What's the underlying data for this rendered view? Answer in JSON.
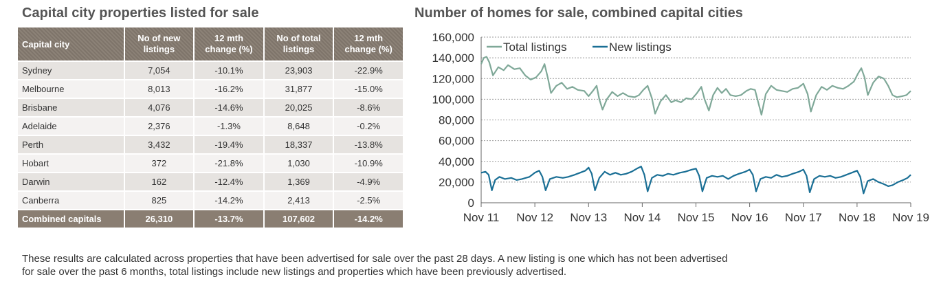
{
  "left": {
    "title": "Capital city properties listed for sale",
    "table": {
      "headers": {
        "city": "Capital city",
        "new_1": "No of new",
        "new_2": "listings",
        "new_chg_1": "12 mth",
        "new_chg_2": "change (%)",
        "total_1": "No of total",
        "total_2": "listings",
        "total_chg_1": "12 mth",
        "total_chg_2": "change (%)"
      },
      "rows": [
        {
          "city": "Sydney",
          "new": "7,054",
          "new_chg": "-10.1%",
          "total": "23,903",
          "total_chg": "-22.9%"
        },
        {
          "city": "Melbourne",
          "new": "8,013",
          "new_chg": "-16.2%",
          "total": "31,877",
          "total_chg": "-15.0%"
        },
        {
          "city": "Brisbane",
          "new": "4,076",
          "new_chg": "-14.6%",
          "total": "20,025",
          "total_chg": "-8.6%"
        },
        {
          "city": "Adelaide",
          "new": "2,376",
          "new_chg": "-1.3%",
          "total": "8,648",
          "total_chg": "-0.2%"
        },
        {
          "city": "Perth",
          "new": "3,432",
          "new_chg": "-19.4%",
          "total": "18,337",
          "total_chg": "-13.8%"
        },
        {
          "city": "Hobart",
          "new": "372",
          "new_chg": "-21.8%",
          "total": "1,030",
          "total_chg": "-10.9%"
        },
        {
          "city": "Darwin",
          "new": "162",
          "new_chg": "-12.4%",
          "total": "1,369",
          "total_chg": "-4.9%"
        },
        {
          "city": "Canberra",
          "new": "825",
          "new_chg": "-14.2%",
          "total": "2,413",
          "total_chg": "-2.5%"
        }
      ],
      "total": {
        "city": "Combined capitals",
        "new": "26,310",
        "new_chg": "-13.7%",
        "total": "107,602",
        "total_chg": "-14.2%"
      }
    }
  },
  "chart_data": {
    "type": "line",
    "title": "Number of homes for sale, combined capital cities",
    "xlabel": "",
    "ylabel": "",
    "ylim": [
      0,
      160000
    ],
    "ytick_labels": [
      "0",
      "20,000",
      "40,000",
      "60,000",
      "80,000",
      "100,000",
      "120,000",
      "140,000",
      "160,000"
    ],
    "xtick_labels": [
      "Nov 11",
      "Nov 12",
      "Nov 13",
      "Nov 14",
      "Nov 15",
      "Nov 16",
      "Nov 17",
      "Nov 18",
      "Nov 19"
    ],
    "xlim": [
      0,
      8
    ],
    "legend_position": "top-left",
    "grid": "horizontal-dotted",
    "series": [
      {
        "name": "Total listings",
        "color": "#7fa898",
        "points": [
          [
            0,
            134000
          ],
          [
            0.05,
            140000
          ],
          [
            0.1,
            141000
          ],
          [
            0.15,
            136000
          ],
          [
            0.22,
            123000
          ],
          [
            0.32,
            131000
          ],
          [
            0.42,
            128000
          ],
          [
            0.5,
            133000
          ],
          [
            0.62,
            129000
          ],
          [
            0.72,
            130000
          ],
          [
            0.82,
            123000
          ],
          [
            0.92,
            119000
          ],
          [
            1.02,
            121000
          ],
          [
            1.12,
            127000
          ],
          [
            1.18,
            134000
          ],
          [
            1.24,
            121000
          ],
          [
            1.3,
            106000
          ],
          [
            1.4,
            113000
          ],
          [
            1.5,
            116000
          ],
          [
            1.6,
            110000
          ],
          [
            1.7,
            112000
          ],
          [
            1.8,
            109000
          ],
          [
            1.92,
            108000
          ],
          [
            2.0,
            103000
          ],
          [
            2.08,
            108000
          ],
          [
            2.15,
            113000
          ],
          [
            2.2,
            100000
          ],
          [
            2.26,
            90000
          ],
          [
            2.34,
            100000
          ],
          [
            2.44,
            107000
          ],
          [
            2.54,
            103000
          ],
          [
            2.64,
            106000
          ],
          [
            2.74,
            103000
          ],
          [
            2.86,
            102000
          ],
          [
            2.94,
            104000
          ],
          [
            3.02,
            109000
          ],
          [
            3.1,
            113000
          ],
          [
            3.18,
            101000
          ],
          [
            3.24,
            86000
          ],
          [
            3.34,
            98000
          ],
          [
            3.44,
            104000
          ],
          [
            3.54,
            97000
          ],
          [
            3.62,
            99000
          ],
          [
            3.72,
            97000
          ],
          [
            3.82,
            101000
          ],
          [
            3.92,
            100000
          ],
          [
            4.02,
            106000
          ],
          [
            4.1,
            112000
          ],
          [
            4.16,
            100000
          ],
          [
            4.24,
            89000
          ],
          [
            4.32,
            104000
          ],
          [
            4.4,
            111000
          ],
          [
            4.48,
            106000
          ],
          [
            4.56,
            110000
          ],
          [
            4.64,
            104000
          ],
          [
            4.74,
            103000
          ],
          [
            4.84,
            104000
          ],
          [
            4.94,
            108000
          ],
          [
            5.02,
            110000
          ],
          [
            5.1,
            109000
          ],
          [
            5.16,
            97000
          ],
          [
            5.22,
            85000
          ],
          [
            5.3,
            105000
          ],
          [
            5.4,
            113000
          ],
          [
            5.5,
            109000
          ],
          [
            5.6,
            108000
          ],
          [
            5.7,
            107000
          ],
          [
            5.8,
            110000
          ],
          [
            5.9,
            111000
          ],
          [
            6.0,
            115000
          ],
          [
            6.08,
            105000
          ],
          [
            6.14,
            88000
          ],
          [
            6.24,
            104000
          ],
          [
            6.34,
            112000
          ],
          [
            6.44,
            109000
          ],
          [
            6.54,
            113000
          ],
          [
            6.64,
            111000
          ],
          [
            6.74,
            110000
          ],
          [
            6.84,
            113000
          ],
          [
            6.94,
            117000
          ],
          [
            7.02,
            125000
          ],
          [
            7.08,
            130000
          ],
          [
            7.14,
            121000
          ],
          [
            7.2,
            104000
          ],
          [
            7.3,
            116000
          ],
          [
            7.4,
            122000
          ],
          [
            7.5,
            120000
          ],
          [
            7.58,
            113000
          ],
          [
            7.66,
            104000
          ],
          [
            7.74,
            102000
          ],
          [
            7.84,
            103000
          ],
          [
            7.92,
            104000
          ],
          [
            8.0,
            108000
          ]
        ]
      },
      {
        "name": "New listings",
        "color": "#1a6f95",
        "points": [
          [
            0,
            29000
          ],
          [
            0.08,
            30000
          ],
          [
            0.14,
            27000
          ],
          [
            0.2,
            12000
          ],
          [
            0.26,
            22000
          ],
          [
            0.34,
            25000
          ],
          [
            0.44,
            23000
          ],
          [
            0.56,
            24000
          ],
          [
            0.66,
            22000
          ],
          [
            0.76,
            23000
          ],
          [
            0.9,
            25000
          ],
          [
            1.0,
            29000
          ],
          [
            1.08,
            31000
          ],
          [
            1.14,
            25000
          ],
          [
            1.2,
            12000
          ],
          [
            1.28,
            23000
          ],
          [
            1.4,
            25000
          ],
          [
            1.52,
            24000
          ],
          [
            1.62,
            25000
          ],
          [
            1.74,
            27000
          ],
          [
            1.84,
            29000
          ],
          [
            1.94,
            31000
          ],
          [
            2.0,
            34000
          ],
          [
            2.06,
            28000
          ],
          [
            2.12,
            12000
          ],
          [
            2.2,
            24000
          ],
          [
            2.3,
            30000
          ],
          [
            2.4,
            27000
          ],
          [
            2.5,
            29000
          ],
          [
            2.6,
            27000
          ],
          [
            2.7,
            28000
          ],
          [
            2.8,
            30000
          ],
          [
            2.9,
            33000
          ],
          [
            2.98,
            35000
          ],
          [
            3.04,
            27000
          ],
          [
            3.1,
            11000
          ],
          [
            3.18,
            24000
          ],
          [
            3.28,
            27000
          ],
          [
            3.38,
            26000
          ],
          [
            3.48,
            28000
          ],
          [
            3.58,
            27000
          ],
          [
            3.7,
            29000
          ],
          [
            3.8,
            30000
          ],
          [
            3.92,
            32000
          ],
          [
            4.0,
            33000
          ],
          [
            4.06,
            26000
          ],
          [
            4.12,
            11000
          ],
          [
            4.2,
            24000
          ],
          [
            4.3,
            26000
          ],
          [
            4.4,
            25000
          ],
          [
            4.5,
            26000
          ],
          [
            4.6,
            23000
          ],
          [
            4.7,
            26000
          ],
          [
            4.8,
            28000
          ],
          [
            4.92,
            30000
          ],
          [
            5.0,
            32000
          ],
          [
            5.06,
            27000
          ],
          [
            5.12,
            11000
          ],
          [
            5.2,
            23000
          ],
          [
            5.3,
            25000
          ],
          [
            5.4,
            24000
          ],
          [
            5.5,
            27000
          ],
          [
            5.6,
            25000
          ],
          [
            5.7,
            26000
          ],
          [
            5.8,
            28000
          ],
          [
            5.92,
            30000
          ],
          [
            6.0,
            32000
          ],
          [
            6.06,
            26000
          ],
          [
            6.12,
            10000
          ],
          [
            6.2,
            23000
          ],
          [
            6.3,
            26000
          ],
          [
            6.4,
            25000
          ],
          [
            6.5,
            26000
          ],
          [
            6.6,
            24000
          ],
          [
            6.7,
            25000
          ],
          [
            6.8,
            27000
          ],
          [
            6.9,
            29000
          ],
          [
            7.0,
            31000
          ],
          [
            7.06,
            25000
          ],
          [
            7.12,
            9000
          ],
          [
            7.2,
            21000
          ],
          [
            7.3,
            23000
          ],
          [
            7.4,
            20000
          ],
          [
            7.5,
            18000
          ],
          [
            7.58,
            16000
          ],
          [
            7.66,
            17000
          ],
          [
            7.76,
            20000
          ],
          [
            7.86,
            22000
          ],
          [
            7.94,
            24000
          ],
          [
            8.0,
            27000
          ]
        ]
      }
    ]
  },
  "footnote": {
    "line1": "These results are calculated across properties that have been advertised for sale over the past 28 days.  A new listing is one which has not been advertised",
    "line2": "for sale over the past 6 months, total listings include new listings and properties which have been previously advertised."
  }
}
